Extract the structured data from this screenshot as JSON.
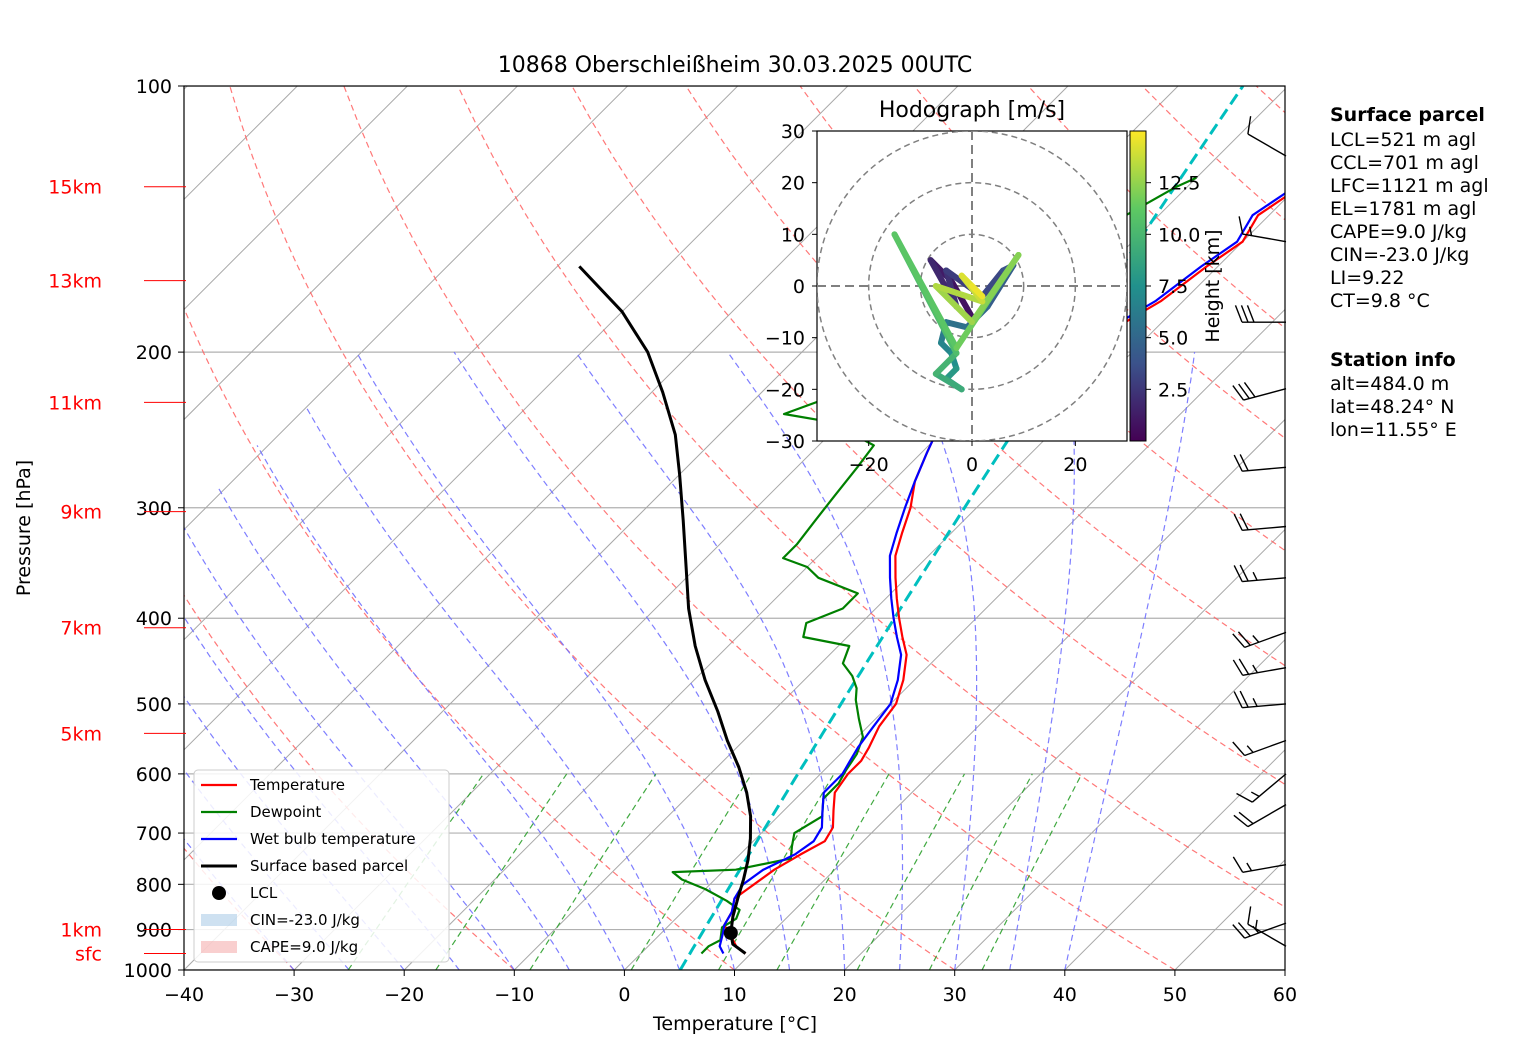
{
  "chart_data": {
    "type": "skew-t log-p sounding",
    "title": "10868 Oberschleißheim 30.03.2025 00UTC",
    "xlabel": "Temperature [°C]",
    "ylabel": "Pressure [hPa]",
    "xlim": [
      -40,
      60
    ],
    "ylim": [
      1000,
      100
    ],
    "grid": true,
    "x_ticks": [
      "−40",
      "−30",
      "−20",
      "−10",
      "0",
      "10",
      "20",
      "30",
      "40",
      "50",
      "60"
    ],
    "y_ticks": [
      "100",
      "200",
      "300",
      "400",
      "500",
      "600",
      "700",
      "800",
      "900",
      "1000"
    ],
    "height_labels": [
      {
        "label": "15km",
        "p": 130
      },
      {
        "label": "13km",
        "p": 166
      },
      {
        "label": "11km",
        "p": 228
      },
      {
        "label": "9km",
        "p": 303
      },
      {
        "label": "7km",
        "p": 410
      },
      {
        "label": "5km",
        "p": 540
      },
      {
        "label": "1km",
        "p": 900
      },
      {
        "label": "sfc",
        "p": 958
      }
    ],
    "series": [
      {
        "name": "Temperature",
        "color": "#ff0000",
        "points": [
          [
            9.5,
            958
          ],
          [
            8,
            940
          ],
          [
            6,
            905
          ],
          [
            5,
            890
          ],
          [
            4.5,
            860
          ],
          [
            3.5,
            830
          ],
          [
            4,
            800
          ],
          [
            4.5,
            770
          ],
          [
            5.5,
            740
          ],
          [
            6.5,
            715
          ],
          [
            6,
            690
          ],
          [
            4.5,
            660
          ],
          [
            3,
            630
          ],
          [
            2.5,
            600
          ],
          [
            2.5,
            580
          ],
          [
            2,
            560
          ],
          [
            1,
            530
          ],
          [
            0.5,
            500
          ],
          [
            -1,
            470
          ],
          [
            -3,
            440
          ],
          [
            -5,
            420
          ],
          [
            -7,
            400
          ],
          [
            -9,
            380
          ],
          [
            -11,
            360
          ],
          [
            -13,
            340
          ],
          [
            -14.5,
            320
          ],
          [
            -16,
            300
          ],
          [
            -18,
            280
          ],
          [
            -19.5,
            260
          ],
          [
            -21,
            240
          ],
          [
            -21.5,
            230
          ],
          [
            -20,
            220
          ],
          [
            -16,
            205
          ],
          [
            -14,
            190
          ],
          [
            -12,
            175
          ],
          [
            -11,
            160
          ],
          [
            -10,
            150
          ],
          [
            -11,
            140
          ],
          [
            -10,
            132
          ],
          [
            -7,
            128
          ]
        ]
      },
      {
        "name": "Dewpoint",
        "color": "#008000",
        "points": [
          [
            5.5,
            958
          ],
          [
            5.5,
            940
          ],
          [
            6,
            925
          ],
          [
            5.5,
            910
          ],
          [
            5,
            895
          ],
          [
            5.5,
            875
          ],
          [
            5,
            855
          ],
          [
            3,
            835
          ],
          [
            0,
            810
          ],
          [
            -3,
            790
          ],
          [
            -4.5,
            775
          ],
          [
            1,
            770
          ],
          [
            5,
            748
          ],
          [
            4,
            725
          ],
          [
            3,
            700
          ],
          [
            4,
            670
          ],
          [
            2.5,
            640
          ],
          [
            2.5,
            615
          ],
          [
            2,
            595
          ],
          [
            1.5,
            570
          ],
          [
            0.5,
            545
          ],
          [
            -1.5,
            520
          ],
          [
            -3.5,
            495
          ],
          [
            -4.5,
            480
          ],
          [
            -6,
            465
          ],
          [
            -8,
            450
          ],
          [
            -9,
            430
          ],
          [
            -14,
            420
          ],
          [
            -15,
            405
          ],
          [
            -13,
            390
          ],
          [
            -13,
            375
          ],
          [
            -18,
            360
          ],
          [
            -20,
            350
          ],
          [
            -23,
            342
          ],
          [
            -23,
            330
          ],
          [
            -23.5,
            310
          ],
          [
            -24,
            290
          ],
          [
            -24.5,
            270
          ],
          [
            -25,
            255
          ],
          [
            -31,
            240
          ],
          [
            -36,
            235
          ],
          [
            -32,
            220
          ],
          [
            -34,
            210
          ],
          [
            -30,
            200
          ],
          [
            -33,
            190
          ],
          [
            -31,
            180
          ],
          [
            -29,
            170
          ],
          [
            -27,
            160
          ],
          [
            -25,
            150
          ],
          [
            -23,
            140
          ],
          [
            -21,
            130
          ],
          [
            -20,
            127
          ]
        ]
      },
      {
        "name": "Wet bulb temperature",
        "color": "#0000ff",
        "points": [
          [
            7.5,
            958
          ],
          [
            6.5,
            940
          ],
          [
            5.5,
            905
          ],
          [
            5,
            890
          ],
          [
            4.5,
            860
          ],
          [
            3.5,
            830
          ],
          [
            3,
            800
          ],
          [
            3.5,
            770
          ],
          [
            5,
            740
          ],
          [
            5.5,
            715
          ],
          [
            5,
            690
          ],
          [
            3.5,
            660
          ],
          [
            2,
            630
          ],
          [
            2,
            600
          ],
          [
            1.5,
            580
          ],
          [
            1,
            560
          ],
          [
            0.5,
            530
          ],
          [
            0,
            500
          ],
          [
            -1.5,
            470
          ],
          [
            -3.5,
            440
          ],
          [
            -5.5,
            420
          ],
          [
            -7.5,
            400
          ],
          [
            -9.5,
            380
          ],
          [
            -11.5,
            360
          ],
          [
            -13.5,
            340
          ],
          [
            -15,
            320
          ],
          [
            -16.5,
            300
          ],
          [
            -18,
            280
          ],
          [
            -19.5,
            260
          ],
          [
            -21,
            240
          ],
          [
            -21.5,
            230
          ],
          [
            -20,
            220
          ],
          [
            -16.5,
            205
          ],
          [
            -14.5,
            190
          ],
          [
            -12.5,
            175
          ],
          [
            -11.5,
            160
          ],
          [
            -10.5,
            150
          ],
          [
            -11.5,
            140
          ],
          [
            -10.5,
            132
          ],
          [
            -7.5,
            128
          ]
        ]
      },
      {
        "name": "Surface based parcel",
        "color": "#000000",
        "points": [
          [
            9.5,
            958
          ],
          [
            7.5,
            935
          ],
          [
            6.3,
            908
          ],
          [
            5,
            870
          ],
          [
            3.8,
            830
          ],
          [
            2.6,
            790
          ],
          [
            1.2,
            750
          ],
          [
            -0.5,
            710
          ],
          [
            -2.5,
            670
          ],
          [
            -5,
            630
          ],
          [
            -8,
            590
          ],
          [
            -11.5,
            550
          ],
          [
            -15,
            510
          ],
          [
            -19,
            470
          ],
          [
            -23,
            430
          ],
          [
            -27,
            390
          ],
          [
            -31,
            350
          ],
          [
            -35.5,
            310
          ],
          [
            -40,
            275
          ],
          [
            -44,
            248
          ],
          [
            -49,
            222
          ],
          [
            -54,
            200
          ],
          [
            -60,
            180
          ],
          [
            -68,
            160
          ]
        ]
      }
    ],
    "lcl_marker": {
      "label": "LCL",
      "t": 6.3,
      "p": 908
    },
    "ccl_line": {
      "color": "#00bfbf",
      "style": "dashed"
    },
    "shading": [
      {
        "label": "CIN=-23.0 J/kg",
        "color": "#a6c8e6"
      },
      {
        "label": "CAPE=9.0 J/kg",
        "color": "#f4a8a8"
      }
    ],
    "legend_placement": "bottom-left",
    "wind_barbs_side": "right"
  },
  "hodograph": {
    "title": "Hodograph [m/s]",
    "xlim": [
      -30,
      30
    ],
    "ylim": [
      -30,
      30
    ],
    "x_ticks": [
      "−20",
      "0",
      "20"
    ],
    "y_ticks": [
      "30",
      "20",
      "10",
      "0",
      "−10",
      "−20",
      "−30"
    ],
    "colorbar_label": "Height [km]",
    "colorbar_ticks": [
      "12.5",
      "10.0",
      "7.5",
      "5.0",
      "2.5"
    ],
    "points": [
      [
        0,
        -6,
        0.5
      ],
      [
        -4,
        1,
        0.8
      ],
      [
        -8,
        5,
        1.2
      ],
      [
        -3,
        -4,
        1.8
      ],
      [
        -5,
        3,
        2.2
      ],
      [
        2,
        -2,
        2.8
      ],
      [
        6,
        3,
        3.3
      ],
      [
        8,
        4,
        3.8
      ],
      [
        3,
        -4,
        4.4
      ],
      [
        -1,
        -8,
        5
      ],
      [
        -5,
        -7,
        5.6
      ],
      [
        -6,
        -11,
        6.2
      ],
      [
        -4,
        -13,
        6.8
      ],
      [
        -3,
        -16,
        7.4
      ],
      [
        -5,
        -18,
        8
      ],
      [
        -2,
        -20,
        8.6
      ],
      [
        -7,
        -17,
        9.2
      ],
      [
        -3,
        -13,
        9.8
      ],
      [
        -15,
        10,
        10.4
      ],
      [
        -3,
        -12,
        11
      ],
      [
        9,
        6,
        11.6
      ],
      [
        0,
        -7,
        12.2
      ],
      [
        -7,
        0,
        12.8
      ],
      [
        2,
        -3,
        13.2
      ],
      [
        -2,
        2,
        13.8
      ],
      [
        2,
        -2,
        14.2
      ],
      [
        0,
        0,
        14.6
      ]
    ]
  },
  "panel": {
    "surface_title": "Surface parcel",
    "surface_lines": [
      "LCL=521 m agl",
      "CCL=701 m agl",
      "LFC=1121 m agl",
      "EL=1781 m agl",
      "CAPE=9.0 J/kg",
      "CIN=-23.0 J/kg",
      "LI=9.22",
      "CT=9.8 °C"
    ],
    "station_title": "Station info",
    "station_lines": [
      "alt=484.0 m",
      "lat=48.24° N",
      "lon=11.55° E"
    ]
  },
  "wind_barbs": [
    {
      "p": 940,
      "speed": 15,
      "dir": 300
    },
    {
      "p": 885,
      "speed": 25,
      "dir": 250
    },
    {
      "p": 760,
      "speed": 15,
      "dir": 260
    },
    {
      "p": 650,
      "speed": 20,
      "dir": 240
    },
    {
      "p": 600,
      "speed": 15,
      "dir": 230
    },
    {
      "p": 550,
      "speed": 15,
      "dir": 250
    },
    {
      "p": 500,
      "speed": 25,
      "dir": 265
    },
    {
      "p": 455,
      "speed": 25,
      "dir": 260
    },
    {
      "p": 415,
      "speed": 25,
      "dir": 250
    },
    {
      "p": 360,
      "speed": 25,
      "dir": 265
    },
    {
      "p": 315,
      "speed": 20,
      "dir": 265
    },
    {
      "p": 270,
      "speed": 20,
      "dir": 265
    },
    {
      "p": 220,
      "speed": 30,
      "dir": 255
    },
    {
      "p": 185,
      "speed": 30,
      "dir": 270
    },
    {
      "p": 150,
      "speed": 15,
      "dir": 280
    },
    {
      "p": 120,
      "speed": 10,
      "dir": 300
    }
  ],
  "colors": {
    "temperature": "#ff0000",
    "dewpoint": "#008000",
    "wetbulb": "#0000ff",
    "parcel": "#000000",
    "ccl": "#00bfbf",
    "height_labels": "#ff0000"
  }
}
